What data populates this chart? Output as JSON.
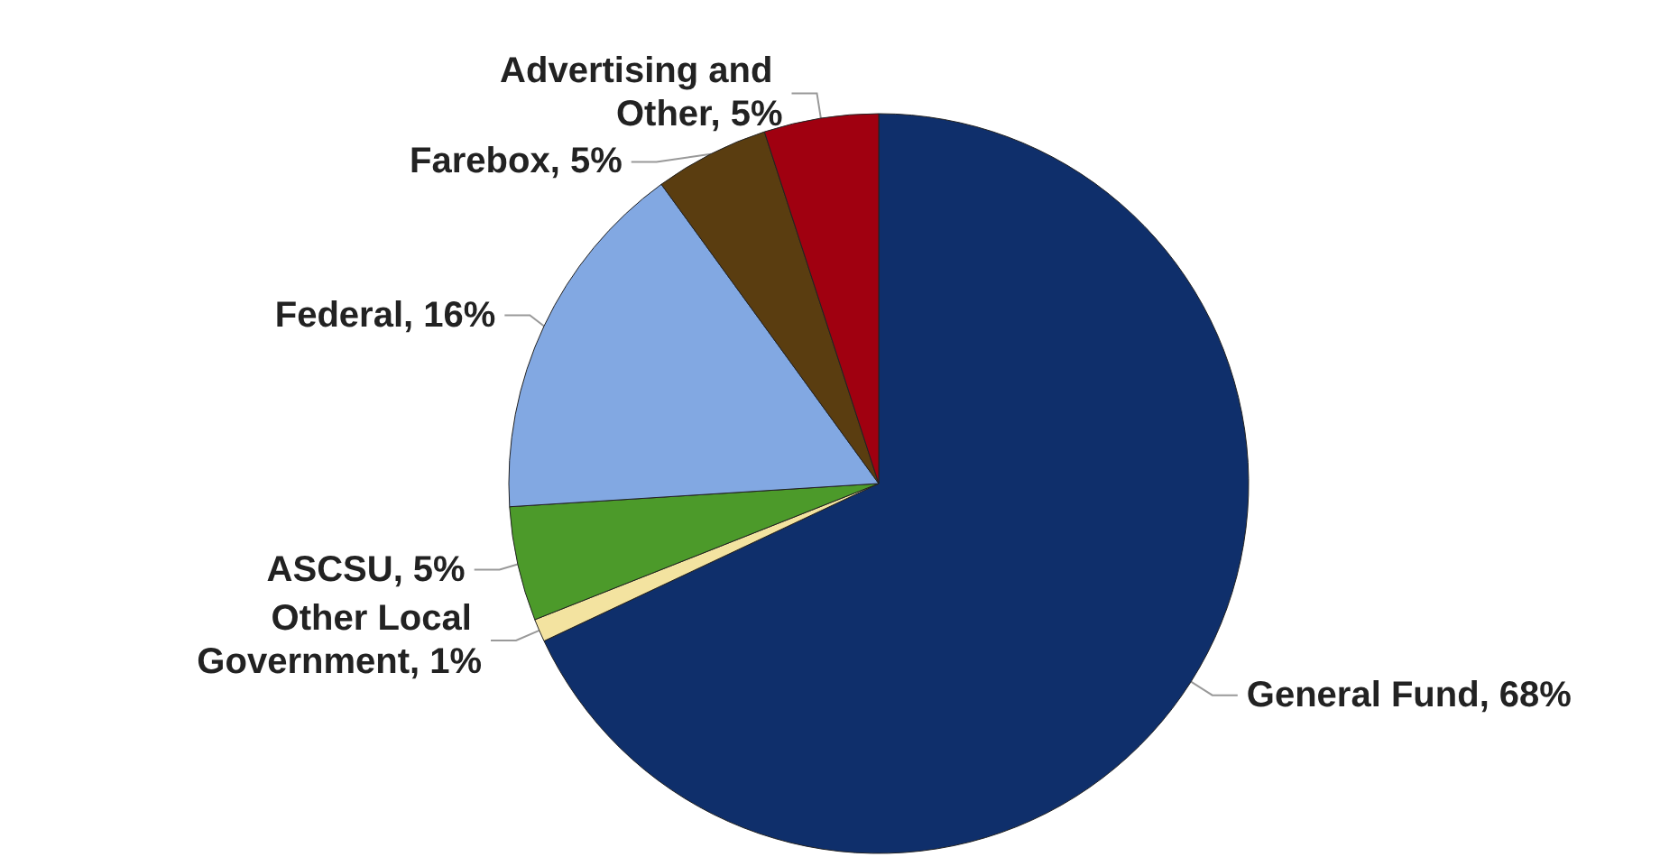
{
  "chart_data": {
    "type": "pie",
    "categories": [
      "General Fund",
      "Other Local Government",
      "ASCSU",
      "Federal",
      "Farebox",
      "Advertising and Other"
    ],
    "values": [
      68,
      1,
      5,
      16,
      5,
      5
    ],
    "value_labels": [
      "68%",
      "1%",
      "5%",
      "16%",
      "5%",
      "5%"
    ],
    "colors": [
      "#0f2f6b",
      "#f3e3a0",
      "#4c9a2a",
      "#82a8e2",
      "#5a3d10",
      "#a00010"
    ]
  }
}
